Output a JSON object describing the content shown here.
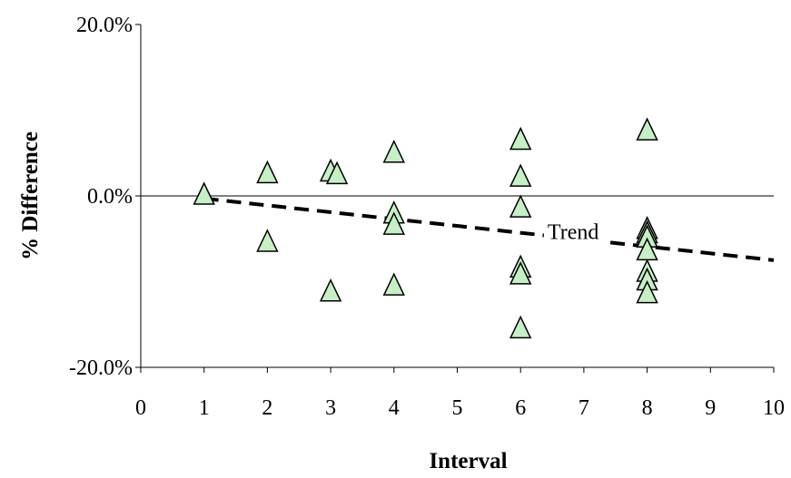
{
  "chart_data": {
    "type": "scatter",
    "xlabel": "Interval",
    "ylabel": "% Difference",
    "xlim": [
      0,
      10
    ],
    "ylim": [
      -0.2,
      0.2
    ],
    "x_ticks": [
      0,
      1,
      2,
      3,
      4,
      5,
      6,
      7,
      8,
      9,
      10
    ],
    "y_ticks": [
      {
        "value": -0.2,
        "label": "-20.0%"
      },
      {
        "value": 0.0,
        "label": "0.0%"
      },
      {
        "value": 0.2,
        "label": "20.0%"
      }
    ],
    "zero_line": true,
    "grid": false,
    "marker": "triangle",
    "colors": {
      "marker_fill": "#c6efc6",
      "marker_stroke": "#000000",
      "trend": "#000000",
      "axis": "#000000"
    },
    "points": [
      {
        "x": 1,
        "y": 0.0
      },
      {
        "x": 2,
        "y": 0.025
      },
      {
        "x": 2,
        "y": -0.055
      },
      {
        "x": 3,
        "y": 0.027
      },
      {
        "x": 3.1,
        "y": 0.024
      },
      {
        "x": 3,
        "y": -0.113
      },
      {
        "x": 4,
        "y": 0.049
      },
      {
        "x": 4,
        "y": -0.022
      },
      {
        "x": 4,
        "y": -0.035
      },
      {
        "x": 4,
        "y": -0.106
      },
      {
        "x": 6,
        "y": 0.064
      },
      {
        "x": 6,
        "y": 0.021
      },
      {
        "x": 6,
        "y": -0.015
      },
      {
        "x": 6,
        "y": -0.085
      },
      {
        "x": 6,
        "y": -0.093
      },
      {
        "x": 6,
        "y": -0.156
      },
      {
        "x": 8,
        "y": 0.075
      },
      {
        "x": 8,
        "y": -0.04
      },
      {
        "x": 8,
        "y": -0.045
      },
      {
        "x": 8,
        "y": -0.05
      },
      {
        "x": 8,
        "y": -0.065
      },
      {
        "x": 8,
        "y": -0.09
      },
      {
        "x": 8,
        "y": -0.1
      },
      {
        "x": 8,
        "y": -0.115
      }
    ],
    "trend": {
      "label": "Trend",
      "style": "dashed",
      "x": [
        1,
        10
      ],
      "y": [
        -0.003,
        -0.075
      ],
      "label_at": {
        "x": 7.0,
        "y": -0.05
      }
    }
  }
}
